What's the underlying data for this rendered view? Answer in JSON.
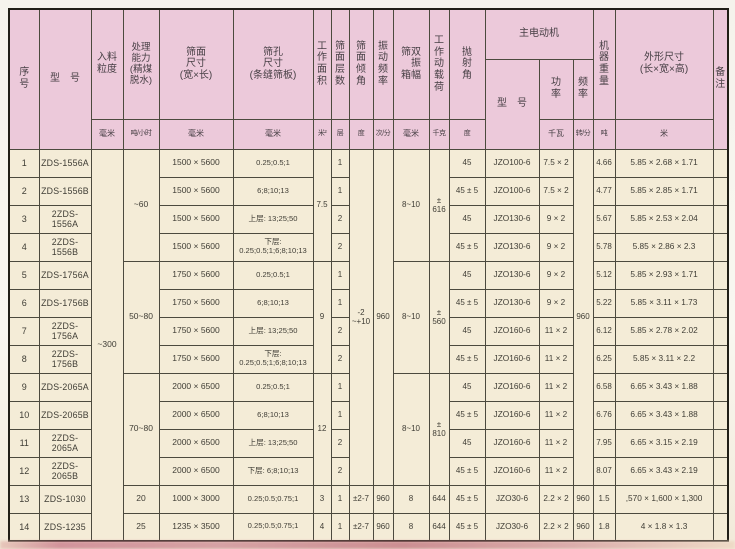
{
  "header": {
    "serial": "序\n号",
    "model": "型　号",
    "feed_size": "入料\n粒度",
    "capacity": "处理\n能力\n(精煤\n脱水)",
    "deck_size": "筛面\n尺寸\n(宽×长)",
    "aperture": "筛孔\n尺寸\n(条缝筛板)",
    "work_area": "工\n作\n面\n积",
    "deck_layers": "筛\n面\n层\n数",
    "deck_angle": "筛\n面\n倾\n角",
    "vib_freq": "振\n动\n频\n率",
    "double_amp": "筛双\n　振\n箱幅",
    "dyn_load": "工\n作\n动\n载\n荷",
    "throw_angle": "抛\n射\n角",
    "motor_group": "主电动机",
    "motor_model": "型　号",
    "motor_power": "功\n率",
    "motor_freq": "频\n率",
    "weight": "机\n器\n重\n量",
    "dims": "外形尺寸\n(长×宽×高)",
    "remarks": "备\n注"
  },
  "units": {
    "feed_size": "毫米",
    "capacity": "吨/小时",
    "deck_size": "毫米",
    "aperture": "毫米",
    "work_area": "米²",
    "deck_layers": "层",
    "deck_angle": "度",
    "vib_freq": "次/分",
    "double_amp": "毫米",
    "dyn_load": "千克",
    "throw_angle": "度",
    "motor_model": "",
    "motor_power": "千瓦",
    "motor_freq": "转/分",
    "weight": "吨",
    "dims": "米"
  },
  "colors": {
    "header_bg": "#ecc9da",
    "body_bg": "#f4ecd7",
    "border": "#4c4a3e",
    "scan_edge": "#cd8591"
  },
  "table": {
    "row_count": 14,
    "columns": [
      {
        "key": "serial",
        "cells": [
          "1",
          "2",
          "3",
          "4",
          "5",
          "6",
          "7",
          "8",
          "9",
          "10",
          "11",
          "12",
          "13",
          "14"
        ]
      },
      {
        "key": "model",
        "cells": [
          "ZDS-1556A",
          "ZDS-1556B",
          "2ZDS-1556A",
          "2ZDS-1556B",
          "ZDS-1756A",
          "ZDS-1756B",
          "2ZDS-1756A",
          "2ZDS-1756B",
          "ZDS-2065A",
          "ZDS-2065B",
          "2ZDS-2065A",
          "2ZDS-2065B",
          "ZDS-1030",
          "ZDS-1235"
        ]
      },
      {
        "key": "feed_size",
        "cells": [
          {
            "t": "~300",
            "s": 14
          }
        ]
      },
      {
        "key": "capacity",
        "cells": [
          {
            "t": "~60",
            "s": 4
          },
          {
            "t": "50~80",
            "s": 4
          },
          {
            "t": "70~80",
            "s": 4
          },
          {
            "t": "20"
          },
          {
            "t": "25"
          }
        ]
      },
      {
        "key": "deck_size",
        "cells": [
          "1500 × 5600",
          "1500 × 5600",
          "1500 × 5600",
          "1500 × 5600",
          "1750 × 5600",
          "1750 × 5600",
          "1750 × 5600",
          "1750 × 5600",
          "2000 × 6500",
          "2000 × 6500",
          "2000 × 6500",
          "2000 × 6500",
          "1000 × 3000",
          "1235 × 3500"
        ]
      },
      {
        "key": "aperture",
        "cells": [
          "0.25;0.5;1",
          "6;8;10;13",
          "上层: 13;25;50",
          "下层: 0.25;0.5;1;6;8;10;13",
          "0.25;0.5;1",
          "6;8;10;13",
          "上层: 13;25;50",
          "下层: 0.25;0.5;1;6;8;10;13",
          "0.25;0.5;1",
          "6;8;10;13",
          "上层: 13;25;50",
          "下层: 6;8;10;13",
          "0.25;0.5;0.75;1",
          "0.25;0.5;0.75;1"
        ]
      },
      {
        "key": "work_area",
        "cells": [
          {
            "t": "7.5",
            "s": 4
          },
          {
            "t": "9",
            "s": 4
          },
          {
            "t": "12",
            "s": 4
          },
          {
            "t": "3"
          },
          {
            "t": "4"
          }
        ]
      },
      {
        "key": "deck_layers",
        "cells": [
          "1",
          "1",
          "2",
          "2",
          "1",
          "1",
          "2",
          "2",
          "1",
          "1",
          "2",
          "2",
          "1",
          "1"
        ]
      },
      {
        "key": "deck_angle",
        "cells": [
          {
            "t": "-2\n~+10",
            "s": 12
          },
          {
            "t": "±2-7"
          },
          {
            "t": "±2-7"
          }
        ]
      },
      {
        "key": "vib_freq",
        "cells": [
          {
            "t": "960",
            "s": 12
          },
          {
            "t": "960"
          },
          {
            "t": "960"
          }
        ]
      },
      {
        "key": "double_amp",
        "cells": [
          {
            "t": "8~10",
            "s": 4
          },
          {
            "t": "8~10",
            "s": 4
          },
          {
            "t": "8~10",
            "s": 4
          },
          {
            "t": "8"
          },
          {
            "t": "8"
          }
        ]
      },
      {
        "key": "dyn_load",
        "cells": [
          {
            "t": "±\n616",
            "s": 4
          },
          {
            "t": "±\n560",
            "s": 4
          },
          {
            "t": "±\n810",
            "s": 4
          },
          {
            "t": "644"
          },
          {
            "t": "644"
          }
        ]
      },
      {
        "key": "throw_angle",
        "cells": [
          "45",
          "45 ± 5",
          "45",
          "45 ± 5",
          "45",
          "45 ± 5",
          "45",
          "45 ± 5",
          "45",
          "45 ± 5",
          "45",
          "45 ± 5",
          "45 ± 5",
          "45 ± 5"
        ]
      },
      {
        "key": "motor_model",
        "cells": [
          "JZO100-6",
          "JZO100-6",
          "JZO130-6",
          "JZO130-6",
          "JZO130-6",
          "JZO130-6",
          "JZO160-6",
          "JZO160-6",
          "JZO160-6",
          "JZO160-6",
          "JZO160-6",
          "JZO160-6",
          "JZO30-6",
          "JZO30-6"
        ]
      },
      {
        "key": "motor_power",
        "cells": [
          "7.5 × 2",
          "7.5 × 2",
          "9 × 2",
          "9 × 2",
          "9 × 2",
          "9 × 2",
          "11 × 2",
          "11 × 2",
          "11 × 2",
          "11 × 2",
          "11 × 2",
          "11 × 2",
          "2.2 × 2",
          "2.2 × 2"
        ]
      },
      {
        "key": "motor_freq",
        "cells": [
          {
            "t": "960",
            "s": 12
          },
          {
            "t": "960"
          },
          {
            "t": "960"
          }
        ]
      },
      {
        "key": "weight",
        "cells": [
          "4.66",
          "4.77",
          "5.67",
          "5.78",
          "5.12",
          "5.22",
          "6.12",
          "6.25",
          "6.58",
          "6.76",
          "7.95",
          "8.07",
          "1.5",
          "1.8"
        ]
      },
      {
        "key": "dims",
        "cells": [
          "5.85 × 2.68 × 1.71",
          "5.85 × 2.85 × 1.71",
          "5.85 × 2.53 × 2.04",
          "5.85 × 2.86 × 2.3",
          "5.85 × 2.93 × 1.71",
          "5.85 × 3.11 × 1.73",
          "5.85 × 2.78 × 2.02",
          "5.85 × 3.11 × 2.2",
          "6.65 × 3.43 × 1.88",
          "6.65 × 3.43 × 1.88",
          "6.65 × 3.15 × 2.19",
          "6.65 × 3.43 × 2.19",
          ",570 × 1,600 × 1,300",
          "4 × 1.8 × 1.3"
        ]
      },
      {
        "key": "remarks",
        "cells": [
          "",
          "",
          "",
          "",
          "",
          "",
          "",
          "",
          "",
          "",
          "",
          "",
          "",
          ""
        ]
      }
    ]
  }
}
